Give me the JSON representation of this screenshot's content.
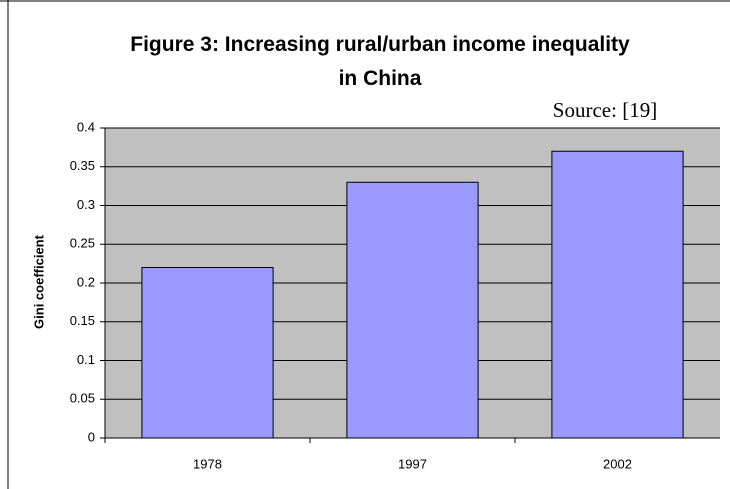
{
  "chart_data": {
    "type": "bar",
    "title": "Figure 3: Increasing rural/urban income inequality in China",
    "annotation": "Source: [19]",
    "y_label": "Gini coefficient",
    "categories": [
      "1978",
      "1997",
      "2002"
    ],
    "values": [
      0.22,
      0.33,
      0.37
    ],
    "color": "#9999ff",
    "ylim": [
      0,
      0.4
    ],
    "yticks": [
      0,
      0.05,
      0.1,
      0.15,
      0.2,
      0.25,
      0.3,
      0.35,
      0.4
    ],
    "grid": true
  }
}
